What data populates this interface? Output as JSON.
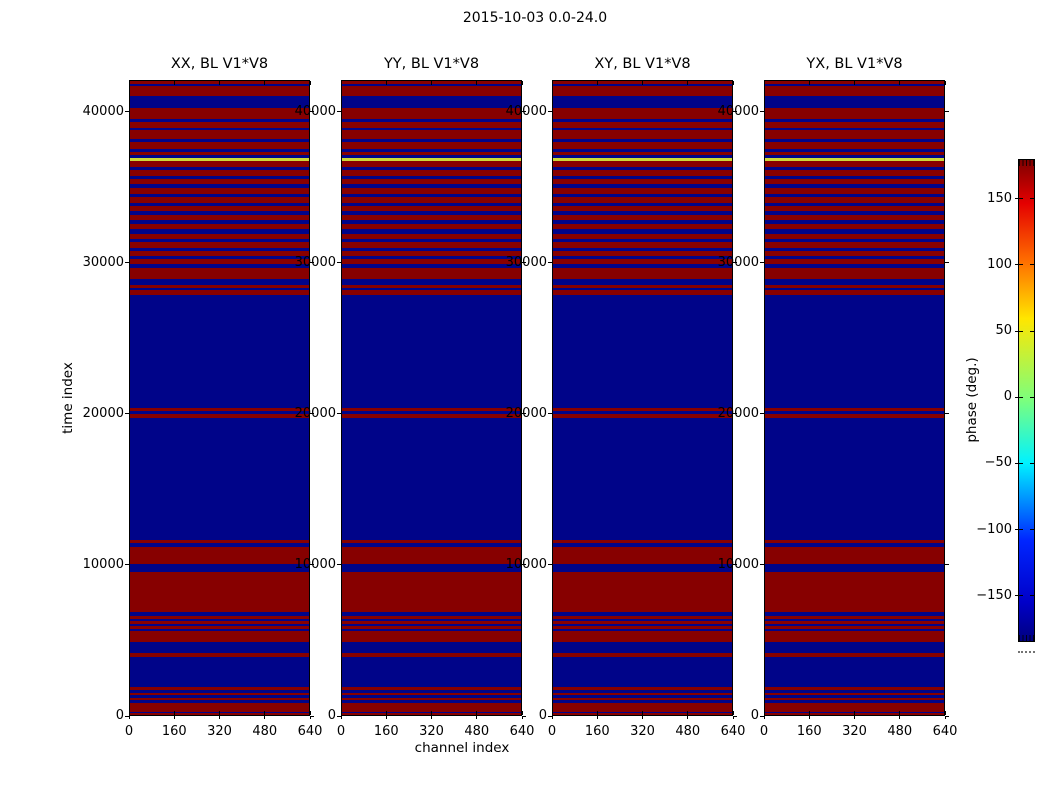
{
  "figure": {
    "title": "2015-10-03 0.0-24.0"
  },
  "panels": [
    {
      "title": "XX, BL V1*V8"
    },
    {
      "title": "YY, BL V1*V8"
    },
    {
      "title": "XY, BL V1*V8"
    },
    {
      "title": "YX, BL V1*V8"
    }
  ],
  "axes": {
    "x": {
      "label": "channel index",
      "tick_labels": [
        "0",
        "160",
        "320",
        "480",
        "640"
      ],
      "tick_values": [
        0,
        160,
        320,
        480,
        640
      ],
      "range": [
        0,
        640
      ]
    },
    "y": {
      "label": "time index",
      "tick_labels": [
        "0",
        "10000",
        "20000",
        "30000",
        "40000"
      ],
      "tick_values": [
        0,
        10000,
        20000,
        30000,
        40000
      ],
      "range": [
        0,
        42100
      ]
    }
  },
  "colorbar": {
    "label": "phase (deg.)",
    "tick_labels": [
      "150",
      "100",
      "50",
      "0",
      "−50",
      "−100",
      "−150"
    ],
    "tick_values": [
      150,
      100,
      50,
      0,
      -50,
      -100,
      -150
    ],
    "range": [
      -180,
      180
    ],
    "colormap": "jet",
    "gradient_stops": [
      [
        "0%",
        "#7f0000"
      ],
      [
        "9%",
        "#e40000"
      ],
      [
        "21%",
        "#ff6e00"
      ],
      [
        "33%",
        "#ffe600"
      ],
      [
        "50%",
        "#7bff7e"
      ],
      [
        "63%",
        "#00f2ff"
      ],
      [
        "79%",
        "#0026ff"
      ],
      [
        "92%",
        "#0000c8"
      ],
      [
        "100%",
        "#00007f"
      ]
    ]
  },
  "chart_data": {
    "type": "heatmap",
    "title": "2015-10-03 0.0-24.0",
    "xlabel": "channel index",
    "ylabel": "time index",
    "zlabel": "phase (deg.)",
    "xlim": [
      0,
      640
    ],
    "ylim": [
      0,
      42100
    ],
    "zlim": [
      -180,
      180
    ],
    "panel_titles": [
      "XX, BL V1*V8",
      "YY, BL V1*V8",
      "XY, BL V1*V8",
      "YX, BL V1*V8"
    ],
    "note": "All four polarization panels show the same horizontal band pattern; phase is saturated near +180 deg (dark red), -180 deg (dark blue), with one yellow line near time 36900. Bands are uniform across all 640 channels.",
    "colors": {
      "R": "#870000",
      "B": "#000489",
      "Y": "#ccd83a"
    },
    "color_meaning": {
      "R": "phase ≈ +180 deg",
      "B": "phase ≈ −180 deg",
      "Y": "phase ≈ +40 deg"
    },
    "stripes": [
      [
        42100,
        41900,
        "R"
      ],
      [
        41900,
        41750,
        "B"
      ],
      [
        41750,
        41100,
        "R"
      ],
      [
        41100,
        40300,
        "B"
      ],
      [
        40300,
        39550,
        "R"
      ],
      [
        39550,
        39380,
        "B"
      ],
      [
        39380,
        38950,
        "R"
      ],
      [
        38950,
        38820,
        "B"
      ],
      [
        38820,
        38280,
        "R"
      ],
      [
        38280,
        38060,
        "B"
      ],
      [
        38060,
        37600,
        "R"
      ],
      [
        37600,
        37400,
        "B"
      ],
      [
        37400,
        37170,
        "R"
      ],
      [
        37170,
        36990,
        "B"
      ],
      [
        36990,
        36820,
        "Y"
      ],
      [
        36820,
        36420,
        "R"
      ],
      [
        36420,
        36210,
        "B"
      ],
      [
        36210,
        35820,
        "R"
      ],
      [
        35820,
        35610,
        "B"
      ],
      [
        35610,
        35230,
        "R"
      ],
      [
        35230,
        35020,
        "B"
      ],
      [
        35020,
        34570,
        "R"
      ],
      [
        34570,
        34390,
        "B"
      ],
      [
        34390,
        33970,
        "R"
      ],
      [
        33970,
        33790,
        "B"
      ],
      [
        33790,
        33440,
        "R"
      ],
      [
        33440,
        33230,
        "B"
      ],
      [
        33230,
        32840,
        "R"
      ],
      [
        32840,
        32630,
        "B"
      ],
      [
        32630,
        32250,
        "R"
      ],
      [
        32250,
        31970,
        "B"
      ],
      [
        31970,
        31590,
        "R"
      ],
      [
        31590,
        31410,
        "B"
      ],
      [
        31410,
        30990,
        "R"
      ],
      [
        30990,
        30810,
        "B"
      ],
      [
        30810,
        30460,
        "R"
      ],
      [
        30460,
        30280,
        "B"
      ],
      [
        30280,
        29930,
        "R"
      ],
      [
        29930,
        29660,
        "B"
      ],
      [
        29660,
        28940,
        "R"
      ],
      [
        28940,
        28530,
        "B"
      ],
      [
        28530,
        28330,
        "R"
      ],
      [
        28330,
        28200,
        "B"
      ],
      [
        28200,
        27880,
        "R"
      ],
      [
        27880,
        20400,
        "B"
      ],
      [
        20400,
        20190,
        "R"
      ],
      [
        20190,
        19990,
        "B"
      ],
      [
        19990,
        19720,
        "R"
      ],
      [
        19720,
        11600,
        "B"
      ],
      [
        11600,
        11390,
        "R"
      ],
      [
        11390,
        11160,
        "B"
      ],
      [
        11160,
        10030,
        "R"
      ],
      [
        10030,
        9470,
        "B"
      ],
      [
        9470,
        6820,
        "R"
      ],
      [
        6820,
        6550,
        "B"
      ],
      [
        6550,
        6390,
        "R"
      ],
      [
        6390,
        6220,
        "B"
      ],
      [
        6220,
        6060,
        "R"
      ],
      [
        6060,
        5890,
        "B"
      ],
      [
        5890,
        5730,
        "R"
      ],
      [
        5730,
        5560,
        "B"
      ],
      [
        5560,
        4830,
        "R"
      ],
      [
        4830,
        4100,
        "B"
      ],
      [
        4100,
        3840,
        "R"
      ],
      [
        3840,
        1850,
        "B"
      ],
      [
        1850,
        1650,
        "R"
      ],
      [
        1650,
        1490,
        "B"
      ],
      [
        1490,
        1320,
        "R"
      ],
      [
        1320,
        1160,
        "B"
      ],
      [
        1160,
        990,
        "R"
      ],
      [
        990,
        800,
        "B"
      ],
      [
        800,
        230,
        "R"
      ],
      [
        230,
        130,
        "B"
      ],
      [
        130,
        0,
        "R"
      ]
    ]
  }
}
